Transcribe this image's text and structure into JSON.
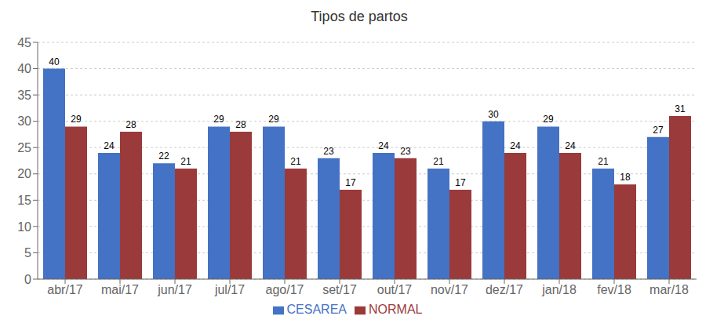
{
  "chart_data": {
    "type": "bar",
    "title": "Tipos de partos",
    "categories": [
      "abr/17",
      "mai/17",
      "jun/17",
      "jul/17",
      "ago/17",
      "set/17",
      "out/17",
      "nov/17",
      "dez/17",
      "jan/18",
      "fev/18",
      "mar/18"
    ],
    "series": [
      {
        "name": "CESAREA",
        "color": "#4472C4",
        "values": [
          40,
          24,
          22,
          29,
          29,
          23,
          24,
          21,
          30,
          29,
          21,
          27
        ]
      },
      {
        "name": "NORMAL",
        "color": "#9B3A3A",
        "values": [
          29,
          28,
          21,
          28,
          21,
          17,
          23,
          17,
          24,
          24,
          18,
          31
        ]
      }
    ],
    "ylim": [
      0,
      45
    ],
    "yticks": [
      0,
      5,
      10,
      15,
      20,
      25,
      30,
      35,
      40,
      45
    ],
    "grid": true,
    "legend": "bottom",
    "data_labels": true
  }
}
